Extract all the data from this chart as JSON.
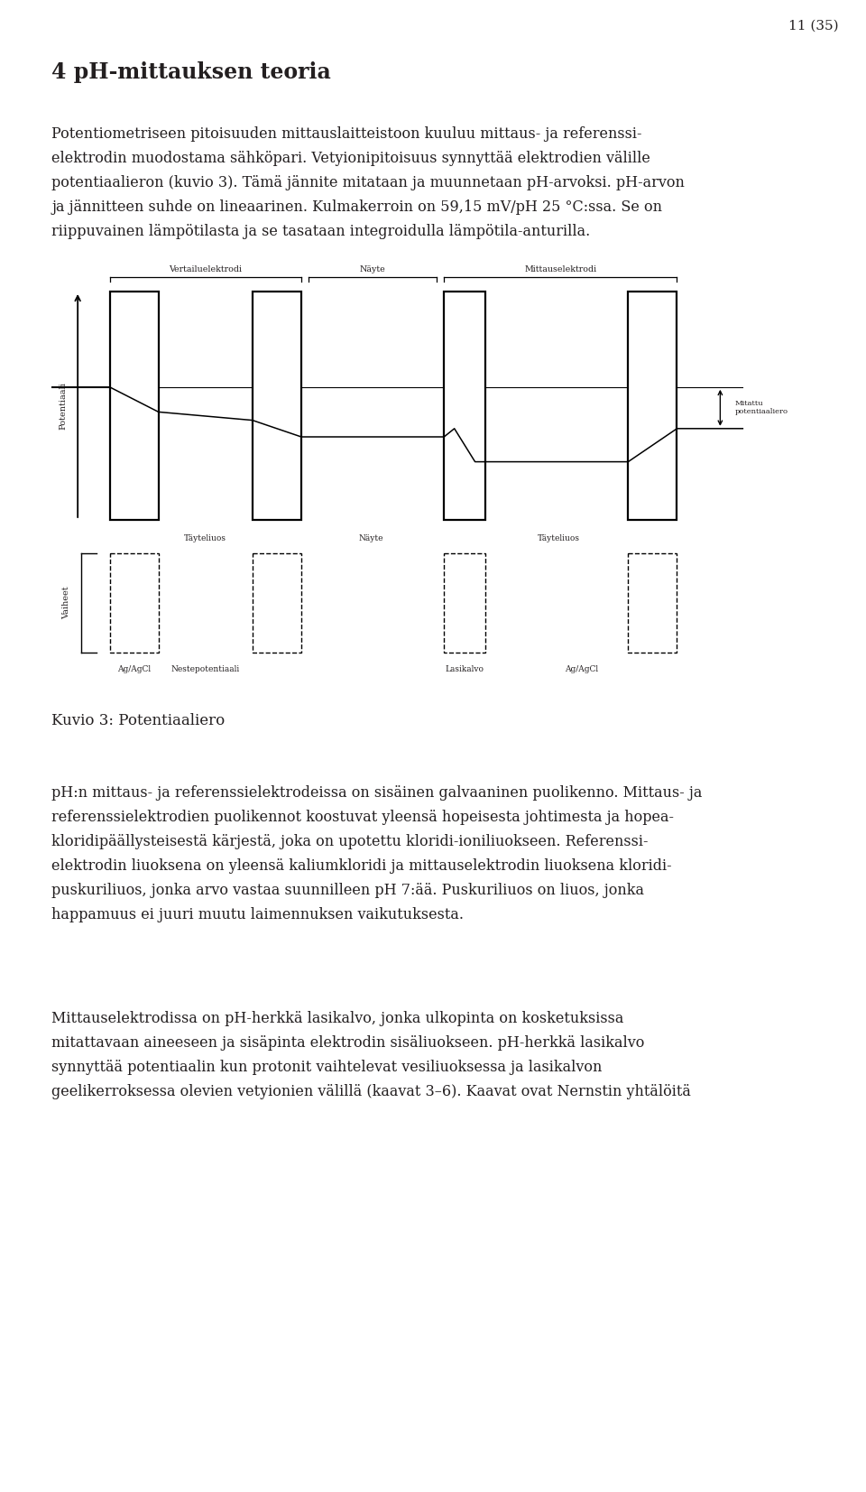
{
  "page_number": "11 (35)",
  "title": "4 pH-mittauksen teoria",
  "para1_lines": [
    "Potentiometriseen pitoisuuden mittauslaitteistoon kuuluu mittaus- ja referenssi-",
    "elektrodin muodostama sähköpari. Vetyionipitoisuus synnyttää elektrodien välille",
    "potentiaalieron (kuvio 3). Tämä jännite mitataan ja muunnetaan pH-arvoksi. pH-arvon",
    "ja jännitteen suhde on lineaarinen. Kulmakerroin on 59,15 mV/pH 25 °C:ssa. Se on",
    "riippuvainen lämpötilasta ja se tasataan integroidulla lämpötila-anturilla."
  ],
  "caption": "Kuvio 3: Potentiaaliero",
  "para2_lines": [
    "pH:n mittaus- ja referenssielektrodeissa on sisäinen galvaaninen puolikenno. Mittaus- ja",
    "referenssielektrodien puolikennot koostuvat yleensä hopeisesta johtimesta ja hopea-",
    "kloridipäällysteisestä kärjestä, joka on upotettu kloridi-ioniliuokseen. Referenssi-",
    "elektrodin liuoksena on yleensä kaliumkloridi ja mittauselektrodin liuoksena kloridi-",
    "puskuriliuos, jonka arvo vastaa suunnilleen pH 7:ää. Puskuriliuos on liuos, jonka",
    "happamuus ei juuri muutu laimennuksen vaikutuksesta."
  ],
  "para3_lines": [
    "Mittauselektrodissa on pH-herkkä lasikalvo, jonka ulkopinta on kosketuksissa",
    "mitattavaan aineeseen ja sisäpinta elektrodin sisäliuokseen. pH-herkkä lasikalvo",
    "synnyttää potentiaalin kun protonit vaihtelevat vesiliuoksessa ja lasikalvon",
    "geelikerroksessa olevien vetyionien välillä (kaavat 3–6). Kaavat ovat Nernstin yhtälöitä"
  ],
  "background_color": "#ffffff",
  "text_color": "#231f20",
  "font_size_body": 11.5,
  "font_size_title": 17,
  "font_size_caption": 12,
  "font_size_pagenum": 11
}
